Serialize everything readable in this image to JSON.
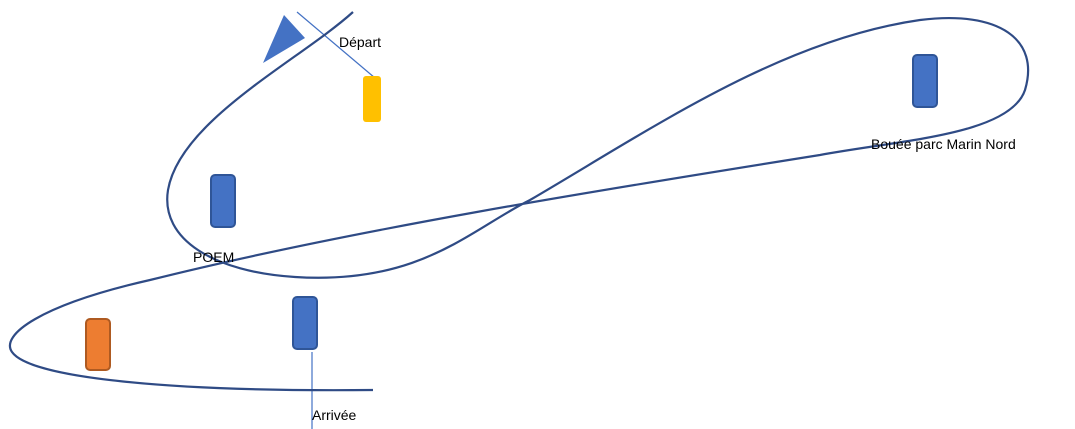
{
  "diagram": {
    "colors": {
      "route": "#2f4b85",
      "buoy_blue": "#4472c4",
      "buoy_blue_border": "#2f5597",
      "buoy_yellow": "#ffc000",
      "buoy_orange": "#ed7d31",
      "buoy_orange_border": "#ae5a21",
      "start_flag": "#4472c4",
      "line": "#4472c4"
    },
    "labels": {
      "depart": "Départ",
      "poem": "POEM",
      "bouee_nord": "Bouée parc Marin Nord",
      "arrivee": "Arrivée"
    },
    "icons": {
      "start_flag": "triangle-flag-icon"
    }
  }
}
